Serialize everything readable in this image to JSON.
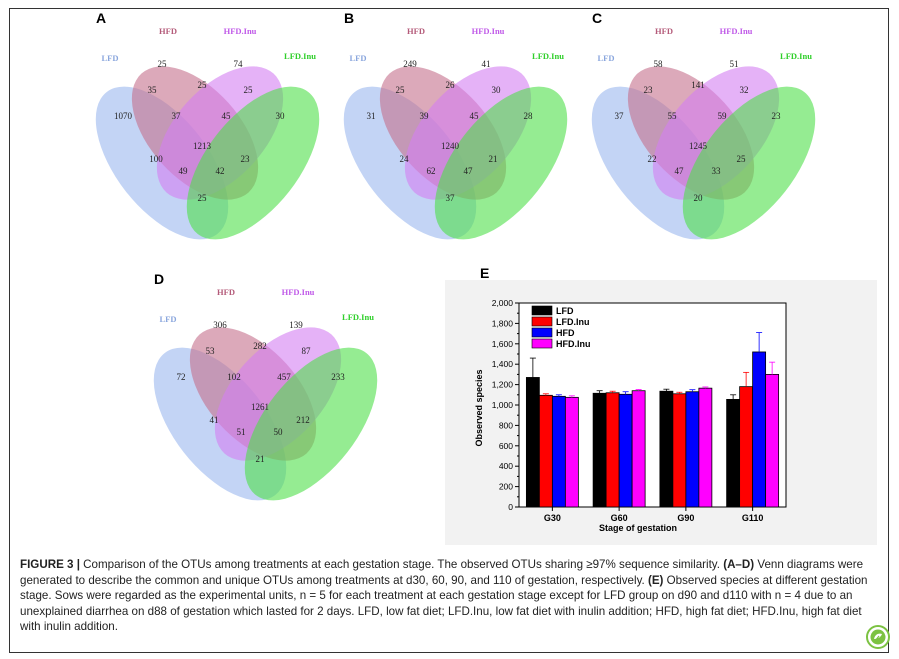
{
  "venn_labels": {
    "lfd": "LFD",
    "hfd": "HFD",
    "hfd_inu": "HFD.Inu",
    "lfd_inu": "LFD.Inu"
  },
  "panels": [
    {
      "letter": "A",
      "counts": {
        "lfd_only": "1070",
        "hfd_only": "25",
        "hfdinu_only": "74",
        "lfdinu_only": "30",
        "lfd_hfd": "35",
        "hfd_hfdinu": "25",
        "hfdinu_lfdinu": "25",
        "lfd_hfdinu": "100",
        "hfd_lfdinu": "23",
        "lfd_lfdinu": "25",
        "lfd_hfd_hfdinu": "37",
        "hfd_hfdinu_lfdinu": "45",
        "lfd_hfdinu_lfdinu": "49",
        "lfd_hfd_lfdinu": "42",
        "all": "1213"
      }
    },
    {
      "letter": "B",
      "counts": {
        "lfd_only": "31",
        "hfd_only": "249",
        "hfdinu_only": "41",
        "lfdinu_only": "28",
        "lfd_hfd": "25",
        "hfd_hfdinu": "26",
        "hfdinu_lfdinu": "30",
        "lfd_hfdinu": "24",
        "hfd_lfdinu": "21",
        "lfd_lfdinu": "37",
        "lfd_hfd_hfdinu": "39",
        "hfd_hfdinu_lfdinu": "45",
        "lfd_hfdinu_lfdinu": "62",
        "lfd_hfd_lfdinu": "47",
        "all": "1240"
      }
    },
    {
      "letter": "C",
      "counts": {
        "lfd_only": "37",
        "hfd_only": "58",
        "hfdinu_only": "51",
        "lfdinu_only": "23",
        "lfd_hfd": "23",
        "hfd_hfdinu": "141",
        "hfdinu_lfdinu": "32",
        "lfd_hfdinu": "22",
        "hfd_lfdinu": "25",
        "lfd_lfdinu": "20",
        "lfd_hfd_hfdinu": "55",
        "hfd_hfdinu_lfdinu": "59",
        "lfd_hfdinu_lfdinu": "47",
        "lfd_hfd_lfdinu": "33",
        "all": "1245"
      }
    },
    {
      "letter": "D",
      "counts": {
        "lfd_only": "72",
        "hfd_only": "306",
        "hfdinu_only": "139",
        "lfdinu_only": "233",
        "lfd_hfd": "53",
        "hfd_hfdinu": "282",
        "hfdinu_lfdinu": "87",
        "lfd_hfdinu": "41",
        "hfd_lfdinu": "212",
        "lfd_lfdinu": "21",
        "lfd_hfd_hfdinu": "102",
        "hfd_hfdinu_lfdinu": "457",
        "lfd_hfdinu_lfdinu": "51",
        "lfd_hfd_lfdinu": "50",
        "all": "1261"
      }
    }
  ],
  "colors": {
    "lfd": "#9bb7ee",
    "hfd": "#c46f8c",
    "hfd_inu": "#d47ef2",
    "lfd_inu": "#4ee04a"
  },
  "chart_data": {
    "type": "bar",
    "panel_letter": "E",
    "categories": [
      "G30",
      "G60",
      "G90",
      "G110"
    ],
    "series": [
      {
        "name": "LFD",
        "color": "#000000",
        "values": [
          1270,
          1115,
          1135,
          1055
        ],
        "errors": [
          190,
          25,
          20,
          45
        ]
      },
      {
        "name": "LFD.Inu",
        "color": "#ff0000",
        "values": [
          1095,
          1120,
          1110,
          1180
        ],
        "errors": [
          15,
          15,
          15,
          140
        ]
      },
      {
        "name": "HFD",
        "color": "#0000ff",
        "values": [
          1085,
          1105,
          1130,
          1520
        ],
        "errors": [
          15,
          25,
          20,
          190
        ]
      },
      {
        "name": "HFD.Inu",
        "color": "#ff00ff",
        "values": [
          1075,
          1140,
          1165,
          1300
        ],
        "errors": [
          15,
          12,
          12,
          120
        ]
      }
    ],
    "ylim": [
      0,
      2000
    ],
    "yticks": [
      "0",
      "200",
      "400",
      "600",
      "800",
      "1,000",
      "1,200",
      "1,400",
      "1,600",
      "1,800",
      "2,000"
    ],
    "xlabel": "Stage of gestation",
    "ylabel": "Observed species",
    "legend_position": "top-left"
  },
  "caption": {
    "lead": "FIGURE 3 | ",
    "t1": "Comparison of the OTUs among treatments at each gestation stage. The observed OTUs sharing ≥97% sequence similarity. ",
    "b1": "(A–D)",
    "t2": " Venn diagrams were generated to describe the common and unique OTUs among treatments at d30, 60, 90, and 110 of gestation, respectively. ",
    "b2": "(E)",
    "t3": " Observed species at different gestation stage. Sows were regarded as the experimental units, n = 5 for each treatment at each gestation stage except for LFD group on d90 and d110 with n = 4 due to an unexplained diarrhea on d88 of gestation which lasted for 2 days. LFD, low fat diet; LFD.Inu, low fat diet with inulin addition; HFD, high fat diet; HFD.Inu, high fat diet with inulin addition."
  }
}
